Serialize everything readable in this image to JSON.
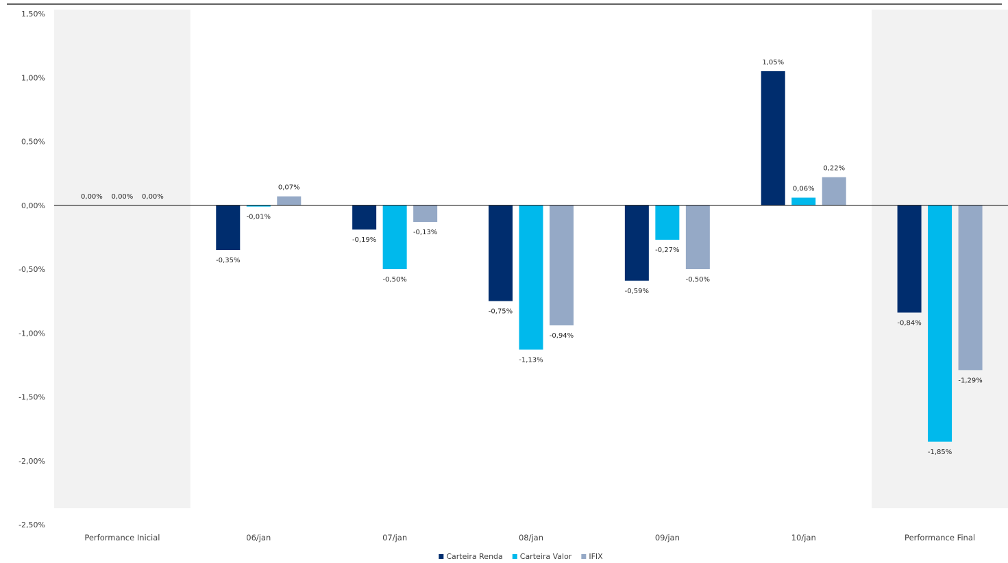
{
  "chart_data": {
    "type": "bar",
    "categories": [
      "Performance Inicial",
      "06/jan",
      "07/jan",
      "08/jan",
      "09/jan",
      "10/jan",
      "Performance Final"
    ],
    "series": [
      {
        "name": "Carteira Renda",
        "color": "#002d6e",
        "values": [
          0.0,
          -0.35,
          -0.19,
          -0.75,
          -0.59,
          1.05,
          -0.84
        ],
        "labels": [
          "0,00%",
          "-0,35%",
          "-0,19%",
          "-0,75%",
          "-0,59%",
          "1,05%",
          "-0,84%"
        ]
      },
      {
        "name": "Carteira Valor",
        "color": "#00b9ec",
        "values": [
          0.0,
          -0.01,
          -0.5,
          -1.13,
          -0.27,
          0.06,
          -1.85
        ],
        "labels": [
          "0,00%",
          "-0,01%",
          "-0,50%",
          "-1,13%",
          "-0,27%",
          "0,06%",
          "-1,85%"
        ]
      },
      {
        "name": "IFIX",
        "color": "#95a9c6",
        "values": [
          0.0,
          0.07,
          -0.13,
          -0.94,
          -0.5,
          0.22,
          -1.29
        ],
        "labels": [
          "0,00%",
          "0,07%",
          "-0,13%",
          "-0,94%",
          "-0,50%",
          "0,22%",
          "-1,29%"
        ]
      }
    ],
    "yticks": [
      1.5,
      1.0,
      0.5,
      0.0,
      -0.5,
      -1.0,
      -1.5,
      -2.0,
      -2.5
    ],
    "ytick_labels": [
      "1,50%",
      "1,00%",
      "0,50%",
      "0,00%",
      "-0,50%",
      "-1,00%",
      "-1,50%",
      "-2,00%",
      "-2,50%"
    ],
    "ylim": [
      -2.5,
      1.5
    ],
    "shaded_categories": [
      "Performance Inicial",
      "Performance Final"
    ],
    "shade_color": "#f2f2f2",
    "gridlines": false,
    "legend_position": "bottom-center",
    "title": "",
    "xlabel": "",
    "ylabel": ""
  }
}
